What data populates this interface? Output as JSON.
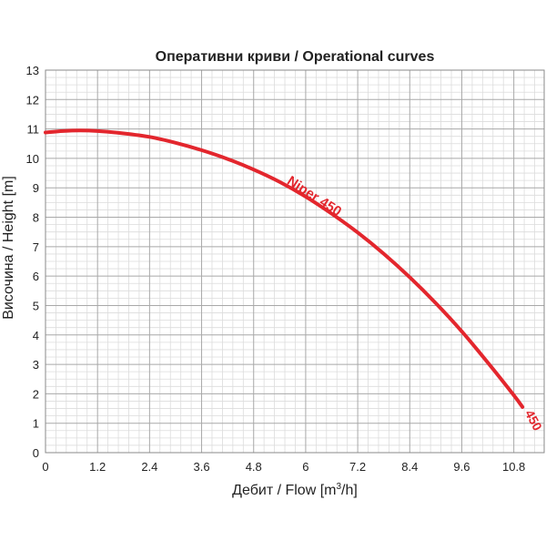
{
  "chart_data": {
    "type": "line",
    "title": "Оперативни криви / Operational curves",
    "xlabel": "Дебит / Flow [m³/h]",
    "ylabel": "Височина / Height [m]",
    "xlim": [
      0,
      11.5
    ],
    "ylim": [
      0,
      13
    ],
    "x_ticks": [
      "0",
      "1.2",
      "2.4",
      "3.6",
      "4.8",
      "6",
      "7.2",
      "8.4",
      "9.6",
      "10.8"
    ],
    "y_ticks": [
      "0",
      "1",
      "2",
      "3",
      "4",
      "5",
      "6",
      "7",
      "8",
      "9",
      "10",
      "11",
      "12",
      "13"
    ],
    "grid": true,
    "series": [
      {
        "name": "Niper 450",
        "end_label": "450",
        "color": "#e3262d",
        "x": [
          0,
          0.4,
          0.8,
          1.2,
          1.8,
          2.4,
          3.0,
          3.6,
          4.2,
          4.8,
          5.4,
          6.0,
          6.6,
          7.2,
          7.8,
          8.4,
          9.0,
          9.6,
          10.2,
          10.8,
          11.0
        ],
        "y": [
          10.88,
          10.93,
          10.95,
          10.93,
          10.85,
          10.73,
          10.53,
          10.28,
          9.98,
          9.62,
          9.2,
          8.7,
          8.12,
          7.48,
          6.76,
          5.96,
          5.08,
          4.12,
          3.06,
          1.95,
          1.55
        ]
      }
    ]
  }
}
